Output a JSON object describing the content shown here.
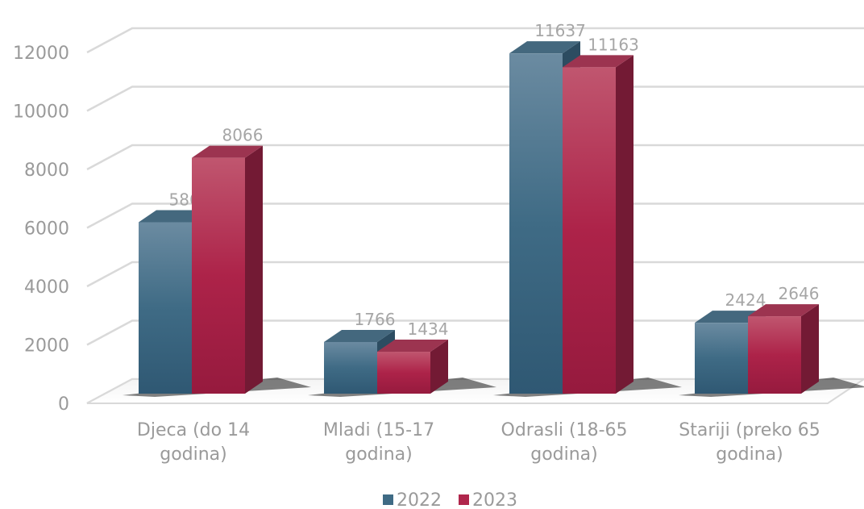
{
  "chart_data": {
    "type": "bar",
    "title": "",
    "xlabel": "",
    "ylabel": "",
    "categories": [
      [
        "Djeca (do 14",
        "godina)"
      ],
      [
        "Mladi (15-17",
        "godina)"
      ],
      [
        "Odrasli (18-65",
        "godina)"
      ],
      [
        "Stariji (preko 65",
        "godina)"
      ]
    ],
    "series": [
      {
        "name": "2022",
        "values": [
          5862,
          1766,
          11637,
          2424
        ],
        "color": "#3f6b85"
      },
      {
        "name": "2023",
        "values": [
          8066,
          1434,
          11163,
          2646
        ],
        "color": "#b0264c"
      }
    ],
    "ylim": [
      0,
      12000
    ],
    "yticks": [
      0,
      2000,
      4000,
      6000,
      8000,
      10000,
      12000
    ],
    "grid": true,
    "style": "3d-clustered-column",
    "data_labels": true,
    "legend_position": "bottom"
  }
}
